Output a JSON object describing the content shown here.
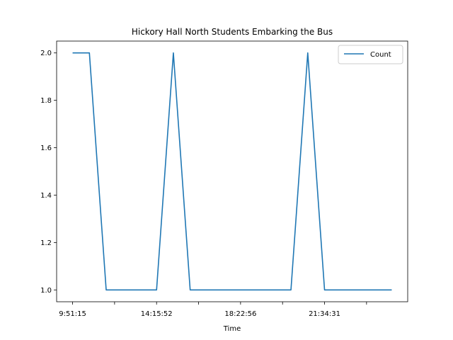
{
  "chart_data": {
    "type": "line",
    "title": "Hickory Hall North Students Embarking the Bus",
    "xlabel": "Time",
    "ylabel": "",
    "x": [
      0,
      1,
      2,
      3,
      4,
      5,
      6,
      7,
      8,
      9,
      10,
      11,
      12,
      13,
      14,
      15,
      16,
      17,
      18,
      19
    ],
    "x_tick_positions": [
      0,
      2.5,
      5,
      7.5,
      10,
      12.5,
      15,
      17.5
    ],
    "x_tick_labels": [
      "9:51:15",
      "",
      "14:15:52",
      "",
      "18:22:56",
      "",
      "21:34:31",
      ""
    ],
    "y_ticks": [
      1.0,
      1.2,
      1.4,
      1.6,
      1.8,
      2.0
    ],
    "y_tick_labels": [
      "1.0",
      "1.2",
      "1.4",
      "1.6",
      "1.8",
      "2.0"
    ],
    "xlim": [
      -0.95,
      19.95
    ],
    "ylim": [
      0.95,
      2.05
    ],
    "series": [
      {
        "name": "Count",
        "color": "#1f77b4",
        "values": [
          2,
          2,
          1,
          1,
          1,
          1,
          2,
          1,
          1,
          1,
          1,
          1,
          1,
          1,
          2,
          1,
          1,
          1,
          1,
          1
        ]
      }
    ],
    "legend": {
      "location": "top-right",
      "entries": [
        "Count"
      ]
    },
    "grid": false
  }
}
